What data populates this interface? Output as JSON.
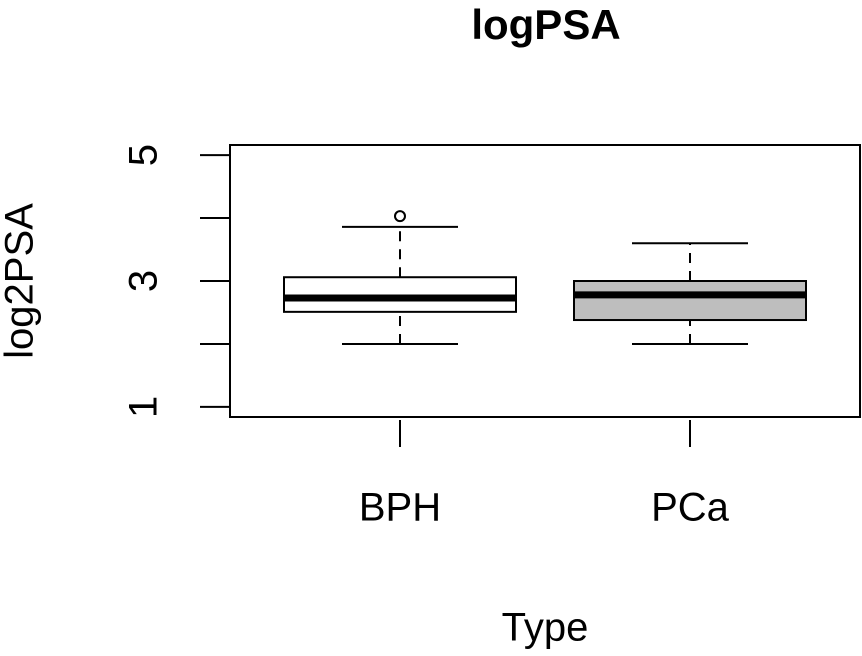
{
  "chart_data": {
    "type": "boxplot",
    "title": "logPSA",
    "x_label": "Type",
    "y_label": "log2PSA",
    "categories": [
      "BPH",
      "PCa"
    ],
    "boxes": [
      {
        "min": 2.0,
        "q1": 2.51,
        "median": 2.73,
        "q3": 3.06,
        "max": 3.86,
        "outliers": [
          4.03
        ],
        "color": "#ffffff"
      },
      {
        "min": 2.0,
        "q1": 2.38,
        "median": 2.78,
        "q3": 3.0,
        "max": 3.6,
        "outliers": [],
        "color": "#bebebe"
      }
    ],
    "ylim": [
      0.84,
      5.16
    ],
    "yticks": [
      1,
      {
        "value": 2,
        "label": null
      },
      3,
      {
        "value": 4,
        "label": null
      },
      5
    ]
  }
}
